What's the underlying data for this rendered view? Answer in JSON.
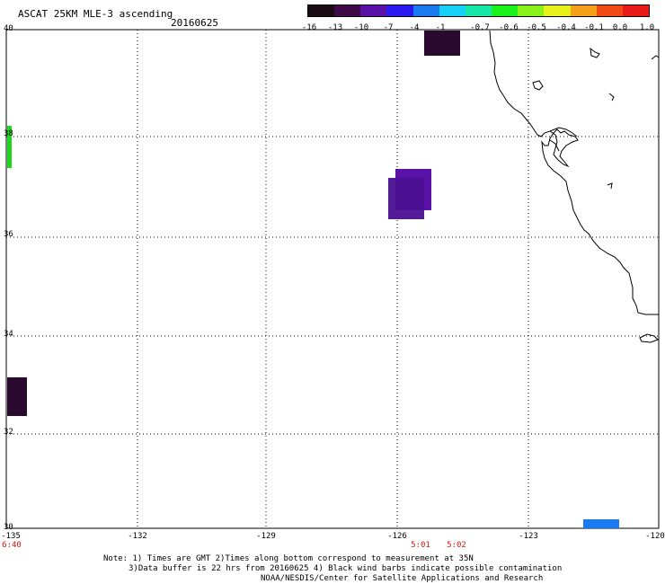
{
  "header": {
    "title": "ASCAT 25KM MLE-3 ascending",
    "date": "20160625"
  },
  "colorbar": {
    "labels": [
      "-16",
      "-13",
      "-10",
      "-7",
      "-4",
      "-1",
      "-0.7",
      "-0.6",
      "-0.5",
      "-0.4",
      "-0.1",
      "0.0",
      "1.0"
    ],
    "colors": [
      "#1a0a14",
      "#3d0a47",
      "#5a11a8",
      "#2b1af0",
      "#1a7af0",
      "#16d0f5",
      "#15e8a8",
      "#1af01a",
      "#8af01a",
      "#e8f01a",
      "#f5a01a",
      "#f04a15",
      "#e81a1a"
    ]
  },
  "axes": {
    "lat_labels": [
      "40",
      "38",
      "36",
      "34",
      "32",
      "30"
    ],
    "lon_labels": [
      "-135",
      "-132",
      "-129",
      "-126",
      "-123",
      "-120"
    ]
  },
  "time_labels": [
    "6:40",
    "5:01",
    "5:02"
  ],
  "notes": {
    "line1": "Note: 1) Times are GMT 2)Times along bottom correspond to measurement at 35N",
    "line2": "3)Data buffer is 22 hrs from 20160625 4) Black wind barbs indicate possible contamination",
    "line3": "NOAA/NESDIS/Center for Satellite Applications and Research"
  },
  "swaths": [
    {
      "name": "purple-swath-a",
      "color": "#5a11a8"
    },
    {
      "name": "purple-swath-b",
      "color": "#4a1090"
    },
    {
      "name": "dark-swath-north",
      "color": "#2a0a2e"
    },
    {
      "name": "dark-swath-west",
      "color": "#2a0a2e"
    },
    {
      "name": "green-strip",
      "color": "#1ed81e"
    },
    {
      "name": "blue-strip",
      "color": "#1a7af0"
    }
  ]
}
